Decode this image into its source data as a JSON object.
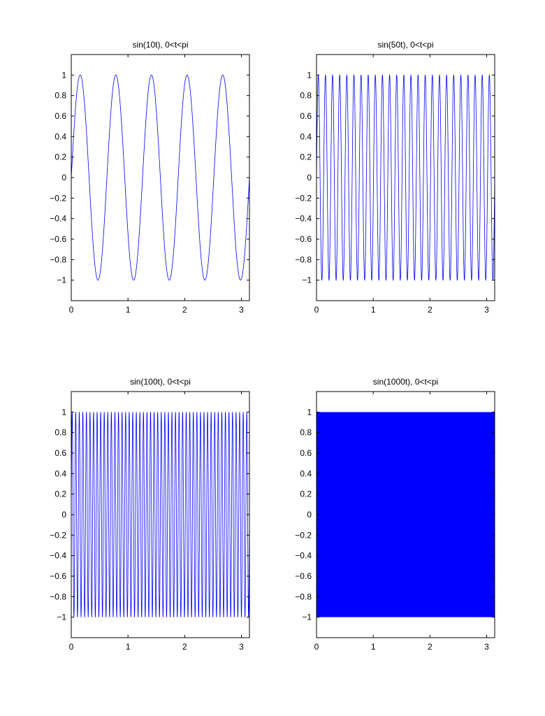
{
  "chart_data": [
    {
      "type": "line",
      "title": "sin(10t), 0<t<pi",
      "function": "sin(10t)",
      "frequency": 10,
      "xlim": [
        0,
        3.14159
      ],
      "ylim": [
        -1.2,
        1.2
      ],
      "xticks": [
        "0",
        "1",
        "2",
        "3"
      ],
      "yticks": [
        "-1",
        "-0.8",
        "-0.6",
        "-0.4",
        "-0.2",
        "0",
        "0.2",
        "0.4",
        "0.6",
        "0.8",
        "1"
      ],
      "color": "#0000ff",
      "grid": false
    },
    {
      "type": "line",
      "title": "sin(50t), 0<t<pi",
      "function": "sin(50t)",
      "frequency": 50,
      "xlim": [
        0,
        3.14159
      ],
      "ylim": [
        -1.2,
        1.2
      ],
      "xticks": [
        "0",
        "1",
        "2",
        "3"
      ],
      "yticks": [
        "-1",
        "-0.8",
        "-0.6",
        "-0.4",
        "-0.2",
        "0",
        "0.2",
        "0.4",
        "0.6",
        "0.8",
        "1"
      ],
      "color": "#0000ff",
      "grid": false
    },
    {
      "type": "line",
      "title": "sin(100t), 0<t<pi",
      "function": "sin(100t)",
      "frequency": 100,
      "xlim": [
        0,
        3.14159
      ],
      "ylim": [
        -1.2,
        1.2
      ],
      "xticks": [
        "0",
        "1",
        "2",
        "3"
      ],
      "yticks": [
        "-1",
        "-0.8",
        "-0.6",
        "-0.4",
        "-0.2",
        "0",
        "0.2",
        "0.4",
        "0.6",
        "0.8",
        "1"
      ],
      "color": "#0000ff",
      "grid": false
    },
    {
      "type": "line",
      "title": "sin(1000t), 0<t<pi",
      "function": "sin(1000t)",
      "frequency": 1000,
      "xlim": [
        0,
        3.14159
      ],
      "ylim": [
        -1.2,
        1.2
      ],
      "xticks": [
        "0",
        "1",
        "2",
        "3"
      ],
      "yticks": [
        "-1",
        "-0.8",
        "-0.6",
        "-0.4",
        "-0.2",
        "0",
        "0.2",
        "0.4",
        "0.6",
        "0.8",
        "1"
      ],
      "color": "#0000ff",
      "grid": false
    }
  ]
}
